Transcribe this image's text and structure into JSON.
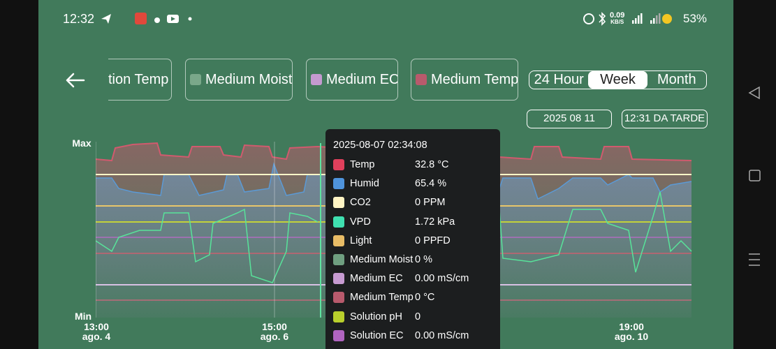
{
  "status_bar": {
    "time": "12:32",
    "net_speed": "0.09",
    "net_unit": "KB/S",
    "battery": "53%"
  },
  "filters": [
    "tion Temp",
    "Medium Moist",
    "Medium EC",
    "Medium Temp"
  ],
  "range": {
    "options": [
      "24 Hour",
      "Week",
      "Month"
    ],
    "selected": "Week"
  },
  "date": "2025 08 11",
  "clock": "12:31 DA TARDE",
  "chart": {
    "y_labels": [
      "Max",
      "Min"
    ],
    "x_labels": [
      {
        "time": "13:00",
        "date": "ago. 4"
      },
      {
        "time": "15:00",
        "date": "ago. 6"
      },
      {
        "time": "19:00",
        "date": "ago. 10"
      }
    ]
  },
  "tooltip": {
    "timestamp": "2025-08-07 02:34:08",
    "rows": [
      {
        "name": "Temp",
        "value": "32.8 °C"
      },
      {
        "name": "Humid",
        "value": "65.4 %"
      },
      {
        "name": "CO2",
        "value": "0 PPM"
      },
      {
        "name": "VPD",
        "value": "1.72 kPa"
      },
      {
        "name": "Light",
        "value": "0 PPFD"
      },
      {
        "name": "Medium Moist",
        "value": "0 %"
      },
      {
        "name": "Medium EC",
        "value": "0.00 mS/cm"
      },
      {
        "name": "Medium Temp",
        "value": "0 °C"
      },
      {
        "name": "Solution pH",
        "value": "0"
      },
      {
        "name": "Solution EC",
        "value": "0.00 mS/cm"
      }
    ]
  }
}
